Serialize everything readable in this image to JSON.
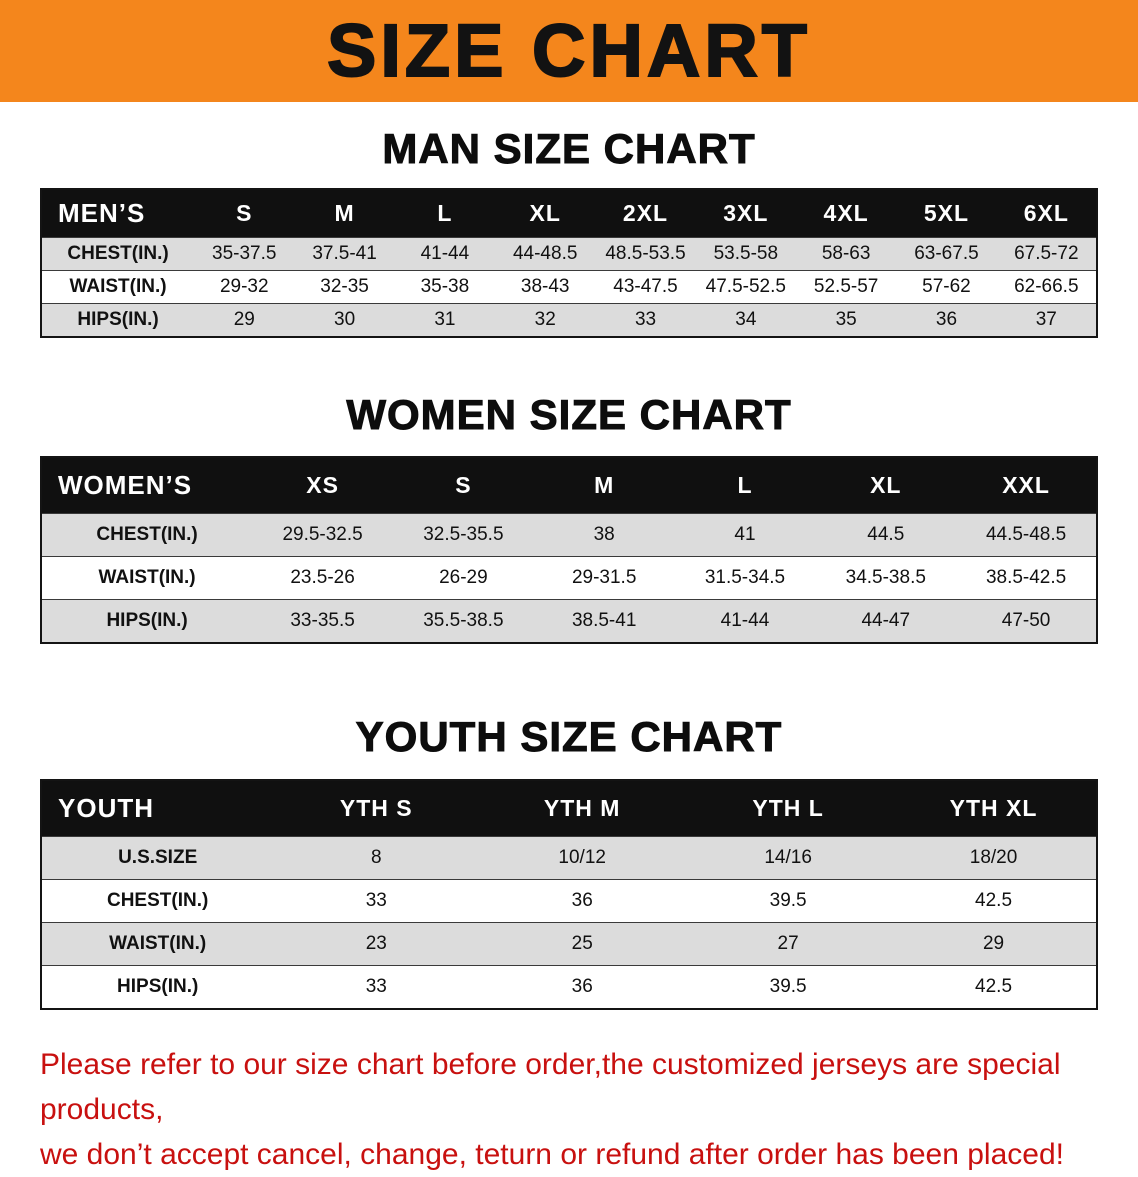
{
  "banner": {
    "title": "SIZE CHART",
    "bg_color": "#F4861C",
    "text_color": "#121212"
  },
  "table_colors": {
    "header_bg": "#101010",
    "header_text": "#FFFFFF",
    "shade_row_bg": "#DCDCDC"
  },
  "sections": {
    "men": {
      "heading": "MAN SIZE CHART",
      "table": {
        "header": [
          "MEN’S",
          "S",
          "M",
          "L",
          "XL",
          "2XL",
          "3XL",
          "4XL",
          "5XL",
          "6XL"
        ],
        "rows": [
          {
            "label": "CHEST(IN.)",
            "values": [
              "35-37.5",
              "37.5-41",
              "41-44",
              "44-48.5",
              "48.5-53.5",
              "53.5-58",
              "58-63",
              "63-67.5",
              "67.5-72"
            ]
          },
          {
            "label": "WAIST(IN.)",
            "values": [
              "29-32",
              "32-35",
              "35-38",
              "38-43",
              "43-47.5",
              "47.5-52.5",
              "52.5-57",
              "57-62",
              "62-66.5"
            ]
          },
          {
            "label": "HIPS(IN.)",
            "values": [
              "29",
              "30",
              "31",
              "32",
              "33",
              "34",
              "35",
              "36",
              "37"
            ]
          }
        ]
      }
    },
    "women": {
      "heading": "WOMEN SIZE CHART",
      "table": {
        "header": [
          "WOMEN’S",
          "XS",
          "S",
          "M",
          "L",
          "XL",
          "XXL"
        ],
        "rows": [
          {
            "label": "CHEST(IN.)",
            "values": [
              "29.5-32.5",
              "32.5-35.5",
              "38",
              "41",
              "44.5",
              "44.5-48.5"
            ]
          },
          {
            "label": "WAIST(IN.)",
            "values": [
              "23.5-26",
              "26-29",
              "29-31.5",
              "31.5-34.5",
              "34.5-38.5",
              "38.5-42.5"
            ]
          },
          {
            "label": "HIPS(IN.)",
            "values": [
              "33-35.5",
              "35.5-38.5",
              "38.5-41",
              "41-44",
              "44-47",
              "47-50"
            ]
          }
        ]
      }
    },
    "youth": {
      "heading": "YOUTH SIZE CHART",
      "table": {
        "header": [
          "YOUTH",
          "YTH S",
          "YTH M",
          "YTH L",
          "YTH XL"
        ],
        "rows": [
          {
            "label": "U.S.SIZE",
            "values": [
              "8",
              "10/12",
              "14/16",
              "18/20"
            ]
          },
          {
            "label": "CHEST(IN.)",
            "values": [
              "33",
              "36",
              "39.5",
              "42.5"
            ]
          },
          {
            "label": "WAIST(IN.)",
            "values": [
              "23",
              "25",
              "27",
              "29"
            ]
          },
          {
            "label": "HIPS(IN.)",
            "values": [
              "33",
              "36",
              "39.5",
              "42.5"
            ]
          }
        ]
      }
    }
  },
  "disclaimer": {
    "line1": "Please refer to our size chart before order,the customized jerseys are special products,",
    "line2": "we don’t accept cancel, change, teturn or refund after order has been placed!",
    "text_color": "#C8100F"
  }
}
